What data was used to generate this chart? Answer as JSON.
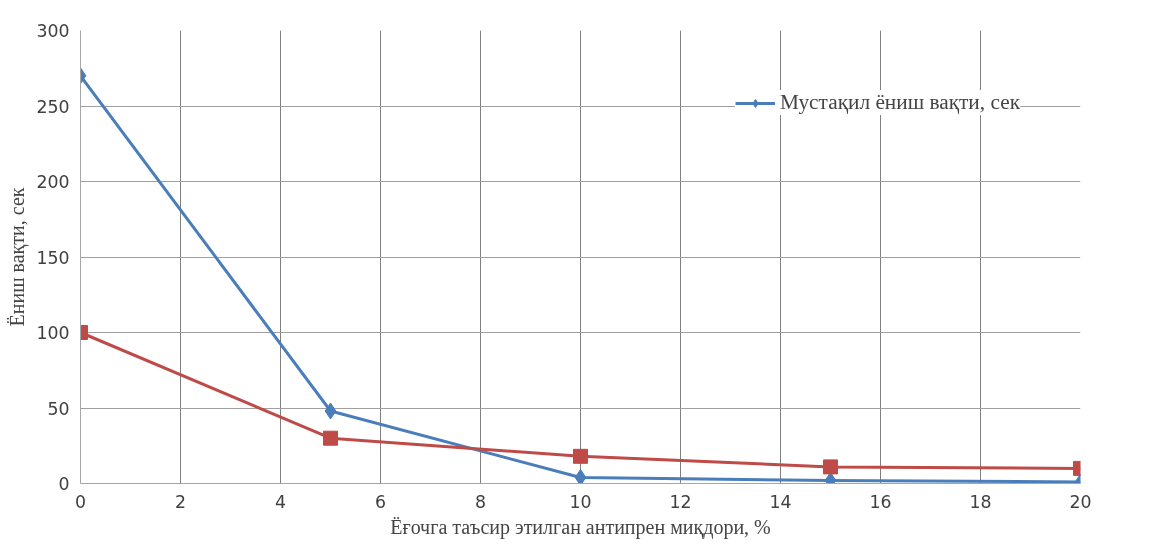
{
  "chart_data": {
    "type": "line",
    "xlabel": "Ёғочга таъсир этилган антипрен миқдори, %",
    "ylabel": "Ёниш вақти, сек",
    "x": [
      0,
      5,
      10,
      15,
      20
    ],
    "series": [
      {
        "name": "Мустақил ёниш вақти, сек",
        "color": "#4a7ebb",
        "marker": "diamond",
        "values": [
          270,
          48,
          4,
          2,
          1
        ]
      },
      {
        "color": "#be4b48",
        "marker": "square",
        "values": [
          100,
          30,
          18,
          11,
          10
        ]
      }
    ],
    "xlim": [
      0,
      20
    ],
    "xticks": [
      0,
      2,
      4,
      6,
      8,
      10,
      12,
      14,
      16,
      18,
      20
    ],
    "ylim": [
      0,
      300
    ],
    "yticks": [
      0,
      50,
      100,
      150,
      200,
      250,
      300
    ],
    "grid": true,
    "legend": "top right",
    "line_style": "solid"
  }
}
